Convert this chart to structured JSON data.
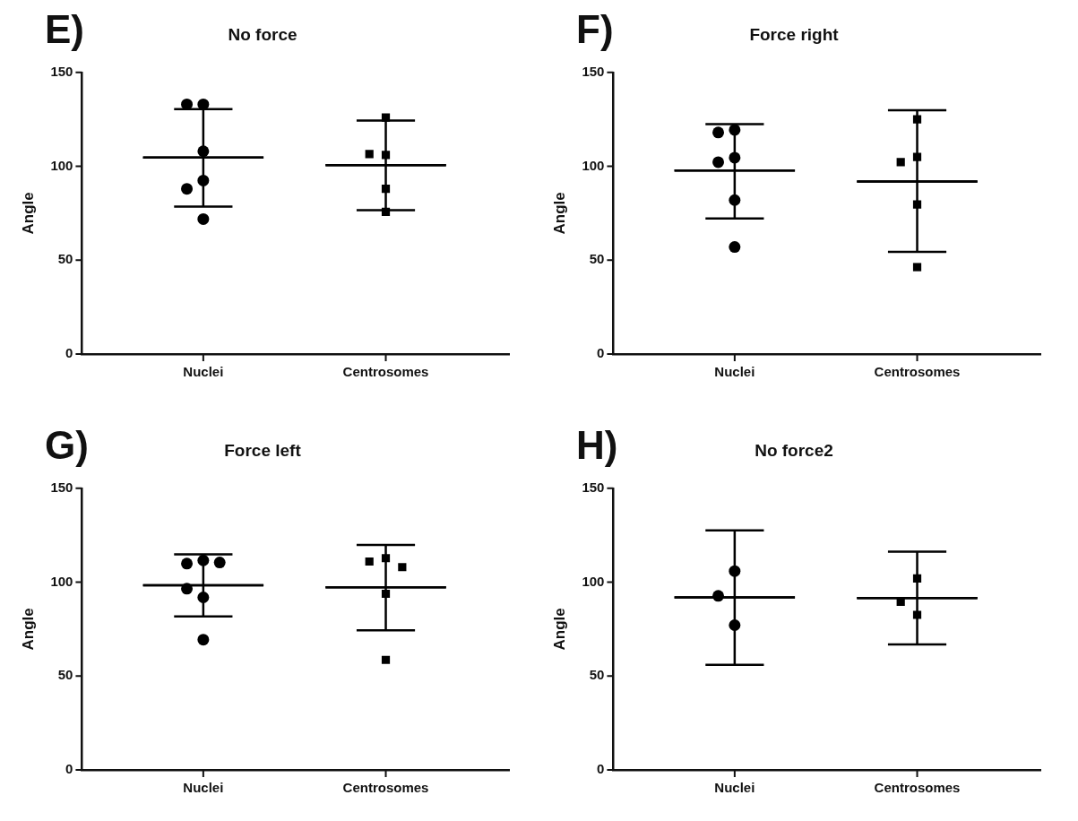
{
  "chart_data": [
    {
      "type": "scatter",
      "title": "No force",
      "ylabel": "Angle",
      "annotations": [
        "E)"
      ],
      "categories": [
        "Nuclei",
        "Centrosomes"
      ],
      "ylim": [
        0,
        150
      ],
      "yticks": [
        0,
        50,
        100,
        150
      ],
      "legend": false,
      "series": [
        {
          "x": [
            "Nuclei",
            "Nuclei",
            "Nuclei",
            "Nuclei",
            "Nuclei",
            "Nuclei"
          ],
          "values": [
            133,
            133,
            108,
            92.4,
            88,
            71.9
          ],
          "color": "#000000",
          "marker": "circle"
        },
        {
          "x": [
            "Centrosomes",
            "Centrosomes",
            "Centrosomes",
            "Centrosomes",
            "Centrosomes"
          ],
          "values": [
            126,
            106,
            106.5,
            88,
            75.7
          ],
          "color": "#000000",
          "marker": "square"
        },
        {
          "type": "box",
          "x": [
            "Nuclei",
            "Centrosomes"
          ],
          "boxes": [
            {
              "low": 78.5,
              "q1": 104.7,
              "median": 104.7,
              "q3": 104.7,
              "high": 130.5
            },
            {
              "low": 76.6,
              "q1": 100.6,
              "median": 100.6,
              "q3": 100.6,
              "high": 124.4
            }
          ],
          "color": "#000000"
        }
      ]
    },
    {
      "type": "scatter",
      "title": "Force right",
      "ylabel": "Angle",
      "annotations": [
        "F)"
      ],
      "categories": [
        "Nuclei",
        "Centrosomes"
      ],
      "ylim": [
        0,
        150
      ],
      "yticks": [
        0,
        50,
        100,
        150
      ],
      "grid": false,
      "legend": false,
      "series": [
        {
          "x": [
            "Nuclei",
            "Nuclei",
            "Nuclei",
            "Nuclei",
            "Nuclei",
            "Nuclei"
          ],
          "values": [
            119.4,
            118,
            104.6,
            102.2,
            82,
            57
          ],
          "color": "#000000",
          "marker": "circle"
        },
        {
          "x": [
            "Centrosomes",
            "Centrosomes",
            "Centrosomes",
            "Centrosomes",
            "Centrosomes"
          ],
          "values": [
            125,
            105,
            102.2,
            79.7,
            46.3
          ],
          "color": "#000000",
          "marker": "square"
        },
        {
          "type": "box",
          "x": [
            "Nuclei",
            "Centrosomes"
          ],
          "boxes": [
            {
              "low": 72.2,
              "q1": 97.7,
              "median": 97.7,
              "q3": 97.7,
              "high": 122.4
            },
            {
              "low": 54.4,
              "q1": 91.9,
              "median": 91.9,
              "q3": 91.9,
              "high": 129.8
            }
          ],
          "color": "#000000"
        }
      ]
    },
    {
      "type": "scatter",
      "title": "Force left",
      "ylabel": "Angle",
      "annotations": [
        "G)"
      ],
      "categories": [
        "Nuclei",
        "Centrosomes"
      ],
      "ylim": [
        0,
        150
      ],
      "yticks": [
        0,
        50,
        100,
        150
      ],
      "grid": false,
      "legend": false,
      "series": [
        {
          "x": [
            "Nuclei",
            "Nuclei",
            "Nuclei",
            "Nuclei",
            "Nuclei",
            "Nuclei"
          ],
          "values": [
            111.6,
            109.9,
            110.5,
            96.5,
            91.9,
            69.4
          ],
          "color": "#000000",
          "marker": "circle"
        },
        {
          "x": [
            "Centrosomes",
            "Centrosomes",
            "Centrosomes",
            "Centrosomes",
            "Centrosomes"
          ],
          "values": [
            112.8,
            111,
            108,
            93.8,
            58.6
          ],
          "color": "#000000",
          "marker": "square"
        },
        {
          "type": "box",
          "x": [
            "Nuclei",
            "Centrosomes"
          ],
          "boxes": [
            {
              "low": 81.8,
              "q1": 98.4,
              "median": 98.4,
              "q3": 98.4,
              "high": 114.8
            },
            {
              "low": 74.3,
              "q1": 97.3,
              "median": 97.3,
              "q3": 97.3,
              "high": 119.8
            }
          ],
          "color": "#000000"
        }
      ]
    },
    {
      "type": "scatter",
      "title": "No force2",
      "ylabel": "Angle",
      "annotations": [
        "H)"
      ],
      "categories": [
        "Nuclei",
        "Centrosomes"
      ],
      "ylim": [
        0,
        150
      ],
      "yticks": [
        0,
        50,
        100,
        150
      ],
      "grid": false,
      "legend": false,
      "series": [
        {
          "x": [
            "Nuclei",
            "Nuclei",
            "Nuclei"
          ],
          "values": [
            105.9,
            92.7,
            77.1
          ],
          "color": "#000000",
          "marker": "circle"
        },
        {
          "x": [
            "Centrosomes",
            "Centrosomes",
            "Centrosomes"
          ],
          "values": [
            102,
            89.5,
            82.6
          ],
          "color": "#000000",
          "marker": "square"
        },
        {
          "type": "box",
          "x": [
            "Nuclei",
            "Centrosomes"
          ],
          "boxes": [
            {
              "low": 56,
              "q1": 91.9,
              "median": 91.9,
              "q3": 91.9,
              "high": 127.6
            },
            {
              "low": 66.8,
              "q1": 91.5,
              "median": 91.5,
              "q3": 91.5,
              "high": 116.2
            }
          ],
          "color": "#000000"
        }
      ]
    }
  ]
}
